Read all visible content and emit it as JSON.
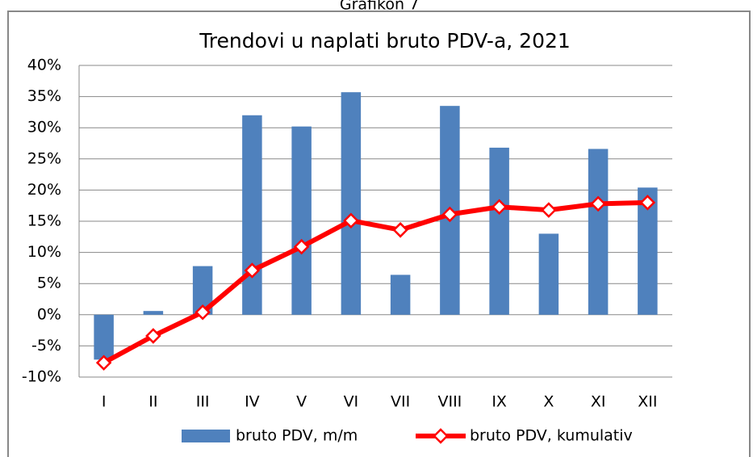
{
  "caption": "Grafikon 7",
  "chart_data": {
    "type": "bar-line",
    "title": "Trendovi u naplati bruto PDV-a, 2021",
    "categories": [
      "I",
      "II",
      "III",
      "IV",
      "V",
      "VI",
      "VII",
      "VIII",
      "IX",
      "X",
      "XI",
      "XII"
    ],
    "series": [
      {
        "name": "bruto PDV, m/m",
        "type": "bar",
        "color": "#4f81bd",
        "values": [
          -7.2,
          0.6,
          7.8,
          32,
          30.2,
          35.7,
          6.4,
          33.5,
          26.8,
          13,
          26.6,
          20.4
        ]
      },
      {
        "name": "bruto PDV, kumulativ",
        "type": "line",
        "color": "#ff0000",
        "values": [
          -7.7,
          -3.4,
          0.4,
          7.1,
          10.9,
          15.1,
          13.6,
          16.1,
          17.3,
          16.8,
          17.8,
          18.0
        ]
      }
    ],
    "ylim": [
      -10,
      40
    ],
    "yticks": [
      {
        "value": -10,
        "label": "-10%"
      },
      {
        "value": -5,
        "label": "-5%"
      },
      {
        "value": 0,
        "label": "0%"
      },
      {
        "value": 5,
        "label": "5%"
      },
      {
        "value": 10,
        "label": "10%"
      },
      {
        "value": 15,
        "label": "15%"
      },
      {
        "value": 20,
        "label": "20%"
      },
      {
        "value": 25,
        "label": "25%"
      },
      {
        "value": 30,
        "label": "30%"
      },
      {
        "value": 35,
        "label": "35%"
      },
      {
        "value": 40,
        "label": "40%"
      }
    ],
    "grid": true,
    "legend": "bottom"
  }
}
